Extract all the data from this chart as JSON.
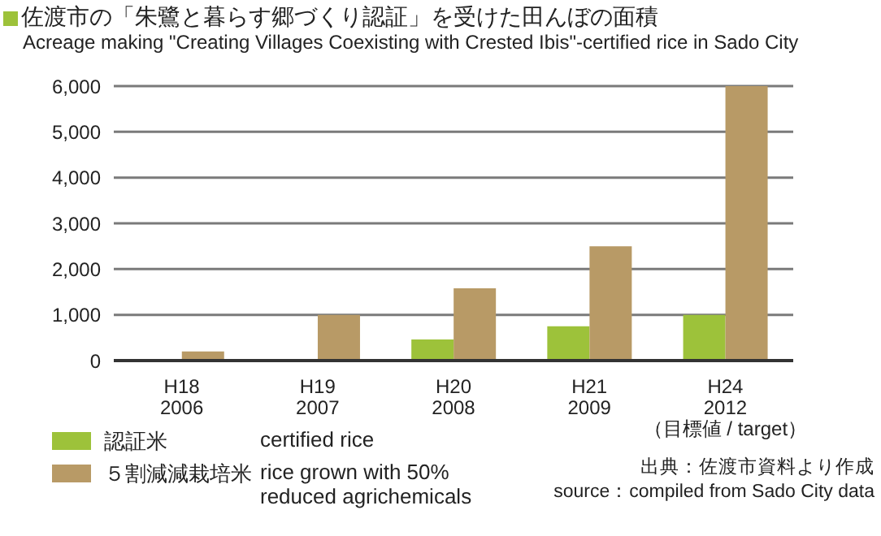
{
  "chart_data": {
    "type": "bar",
    "title": "佐渡市の「朱鷺と暮らす郷づくり認証」を受けた田んぼの面積",
    "subtitle": "Acreage making \"Creating Villages Coexisting with Crested Ibis\"-certified rice in Sado City",
    "categories": [
      "H18\n2006",
      "H19\n2007",
      "H20\n2008",
      "H21\n2009",
      "H24\n2012\n（目標値 / target）"
    ],
    "series": [
      {
        "name": "認証米　certified rice",
        "color": "#9dc23a",
        "values": [
          10,
          10,
          460,
          750,
          1000
        ]
      },
      {
        "name": "５割減減栽培米　rice grown with 50% reduced agrichemicals",
        "color": "#b89a66",
        "values": [
          200,
          1000,
          1580,
          2500,
          6000
        ]
      }
    ],
    "ylim": [
      0,
      6000
    ],
    "yticks": [
      {
        "value": 0,
        "label": "0"
      },
      {
        "value": 1000,
        "label": "1,000"
      },
      {
        "value": 2000,
        "label": "2,000"
      },
      {
        "value": 3000,
        "label": "3,000"
      },
      {
        "value": 4000,
        "label": "4,000"
      },
      {
        "value": 5000,
        "label": "5,000"
      },
      {
        "value": 6000,
        "label": "6,000"
      }
    ],
    "grid": "y",
    "legend": "bottom left",
    "annotations": [
      "出典：佐渡市資料より作成",
      "source：compiled from Sado City data"
    ]
  }
}
